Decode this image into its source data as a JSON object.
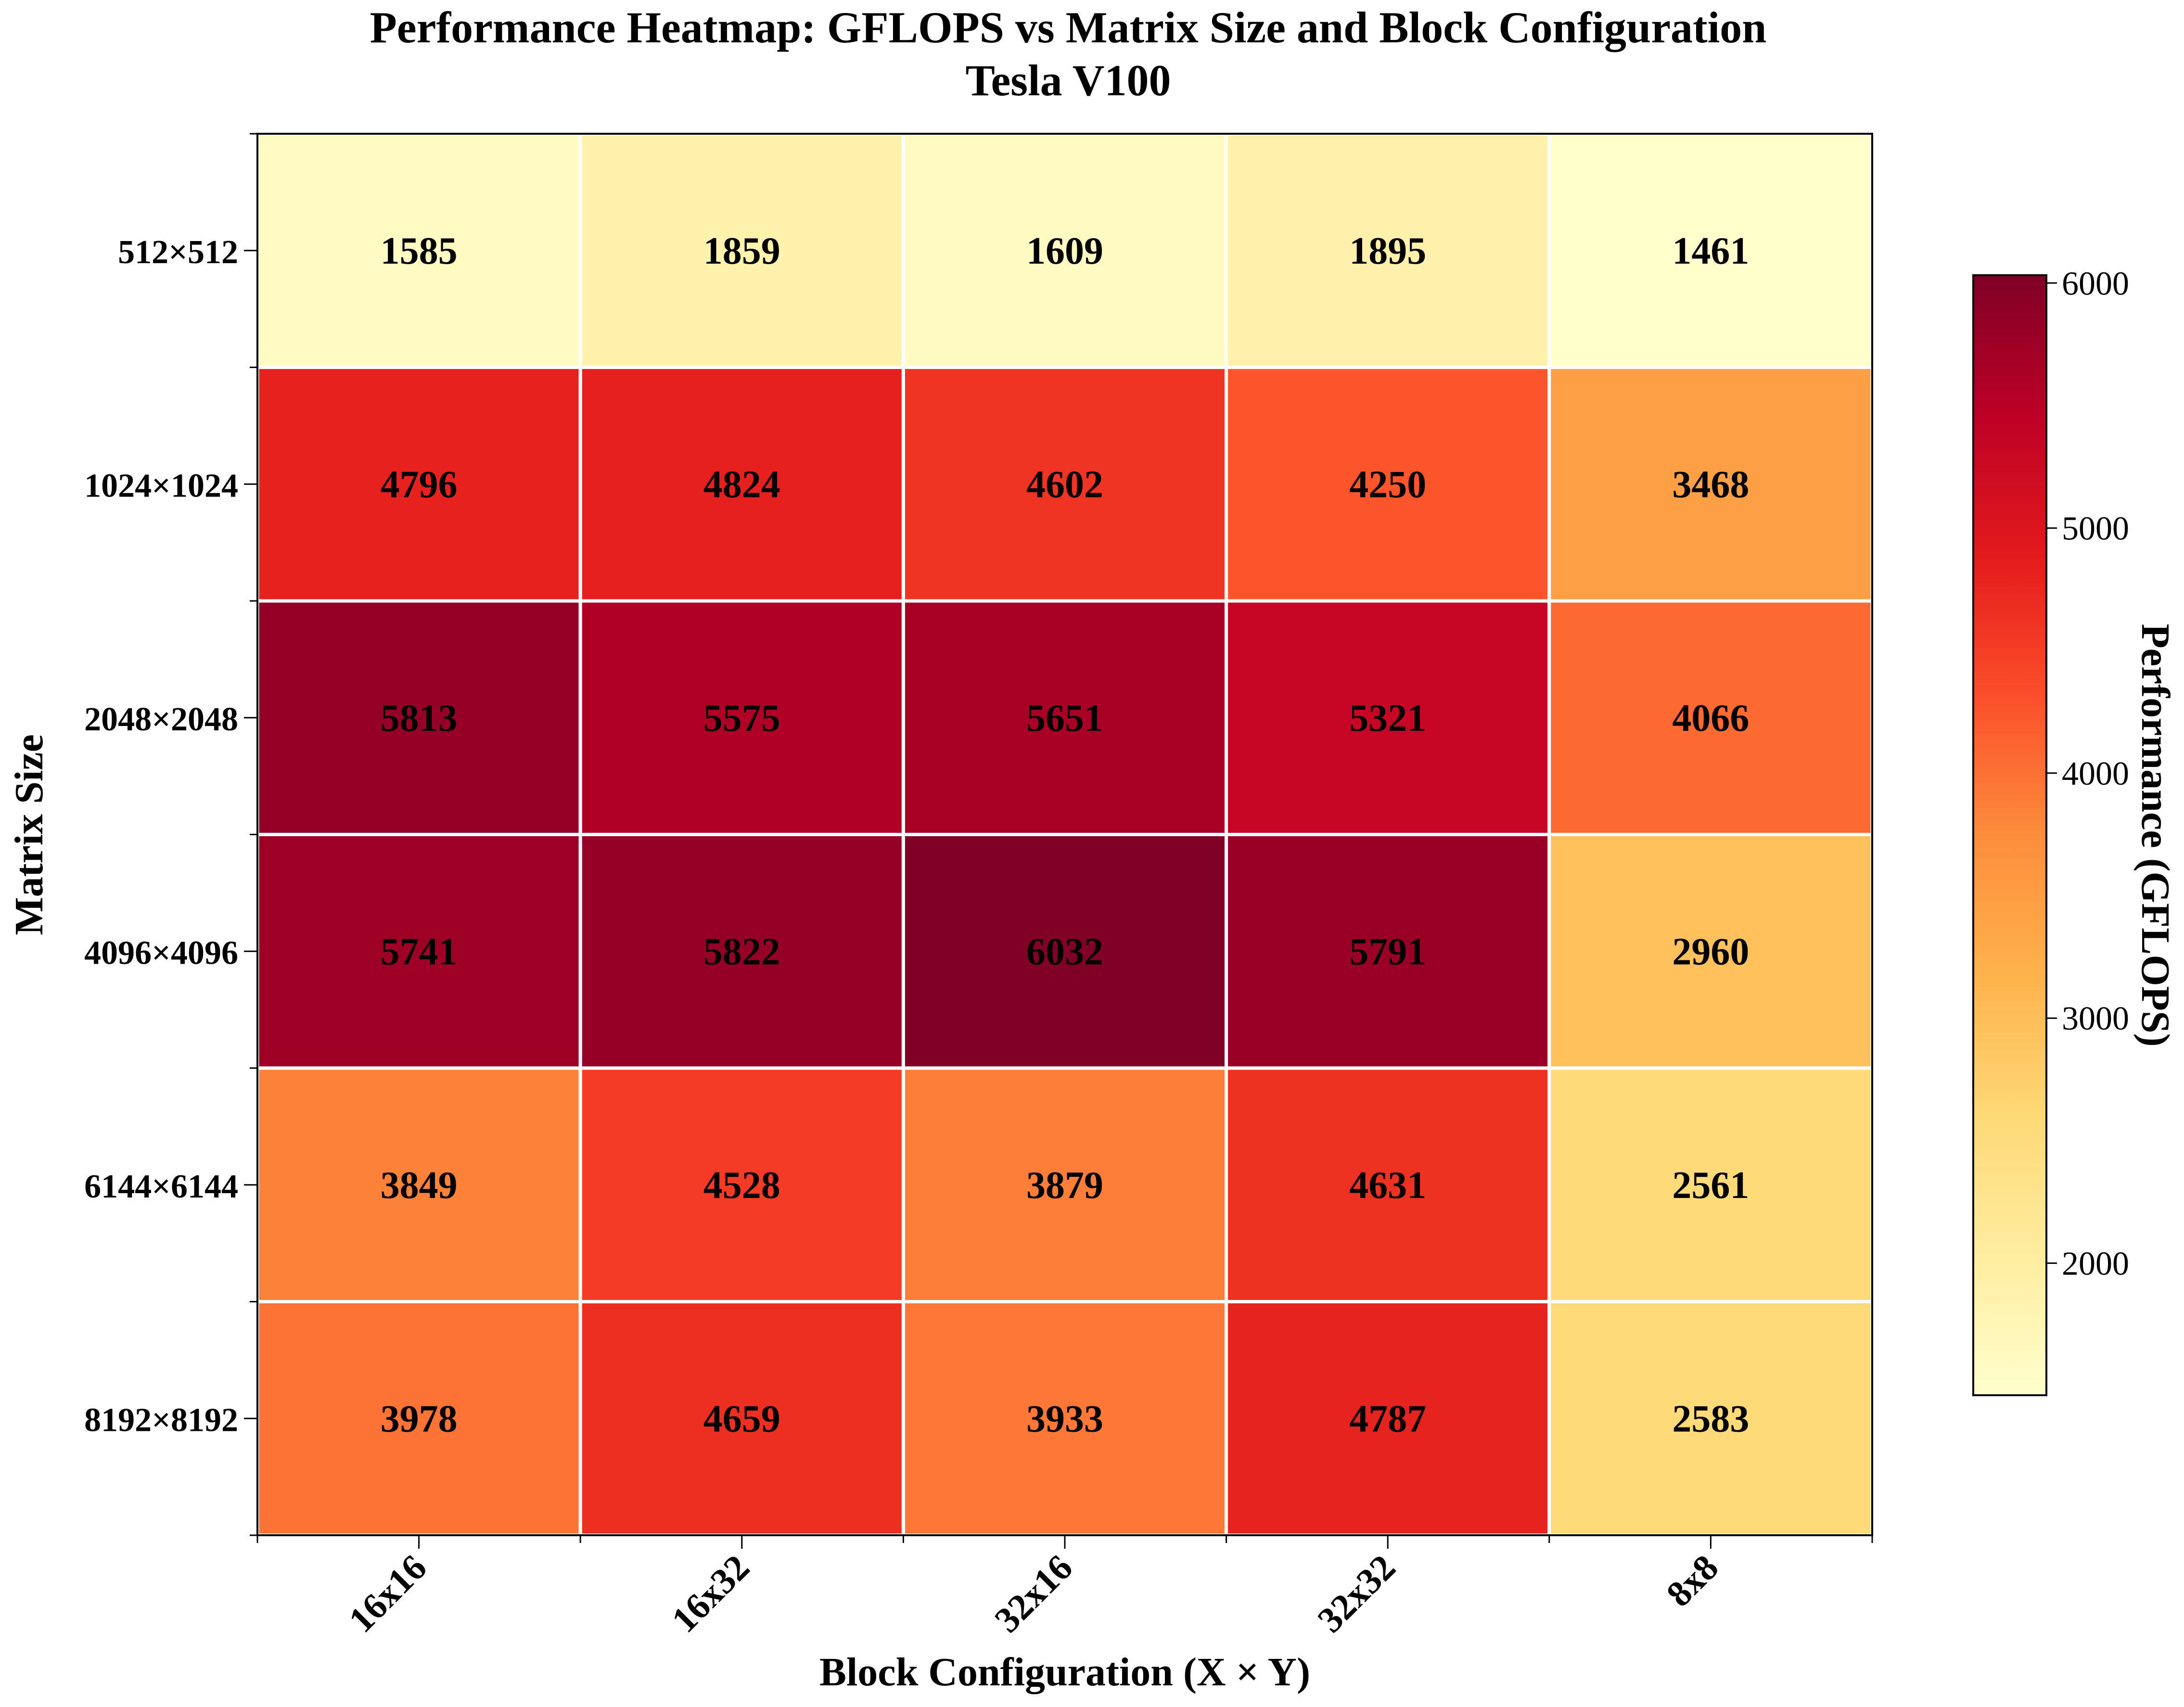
{
  "chart_data": {
    "type": "heatmap",
    "title": "Performance Heatmap: GFLOPS vs Matrix Size and Block Configuration",
    "subtitle": "Tesla V100",
    "xlabel": "Block Configuration (X × Y)",
    "ylabel": "Matrix Size",
    "x_categories": [
      "16x16",
      "16x32",
      "32x16",
      "32x32",
      "8x8"
    ],
    "y_categories": [
      "512×512",
      "1024×1024",
      "2048×2048",
      "4096×4096",
      "6144×6144",
      "8192×8192"
    ],
    "values": [
      [
        1585,
        1859,
        1609,
        1895,
        1461
      ],
      [
        4796,
        4824,
        4602,
        4250,
        3468
      ],
      [
        5813,
        5575,
        5651,
        5321,
        4066
      ],
      [
        5741,
        5822,
        6032,
        5791,
        2960
      ],
      [
        3849,
        4528,
        3879,
        4631,
        2561
      ],
      [
        3978,
        4659,
        3933,
        4787,
        2583
      ]
    ],
    "colorbar": {
      "label": "Performance (GFLOPS)",
      "range": [
        1461,
        6032
      ],
      "ticks": [
        2000,
        3000,
        4000,
        5000,
        6000
      ],
      "colormap": "YlOrRd"
    },
    "grid": false,
    "legend": "colorbar-right"
  },
  "colors": {
    "cell_border": "#ffffff",
    "axis": "#000000",
    "colormap_stops": [
      "#ffffcc",
      "#ffeda0",
      "#fed976",
      "#feb24c",
      "#fd8d3c",
      "#fc4e2a",
      "#e31a1c",
      "#bd0026",
      "#800026"
    ]
  }
}
